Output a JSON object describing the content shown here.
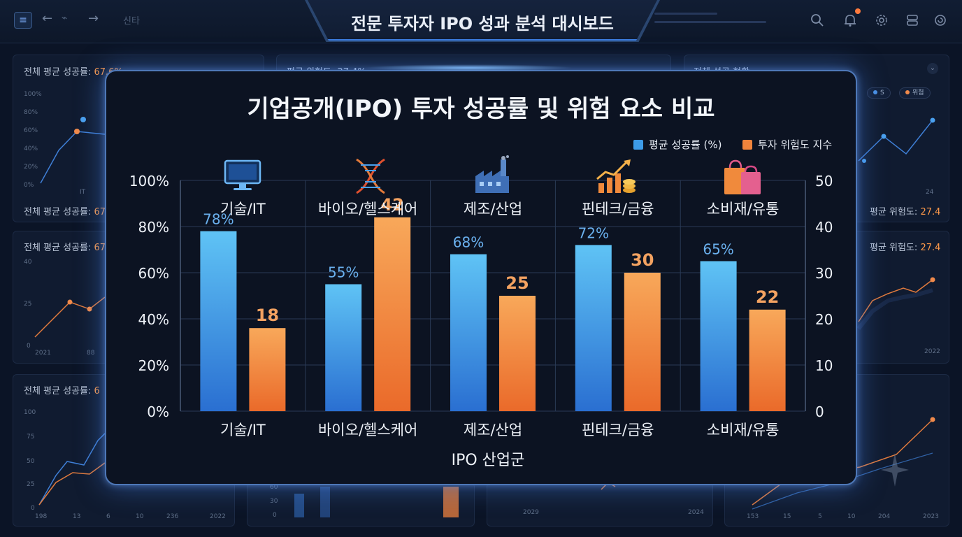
{
  "header": {
    "title": "전문 투자자 IPO 성과 분석 대시보드",
    "search_hint": "신타",
    "icons": [
      "menu-icon",
      "back-arrow-icon",
      "pulse-icon",
      "forward-arrow-icon",
      "search-icon",
      "bell-icon",
      "gear-icon",
      "layers-icon",
      "power-icon"
    ]
  },
  "background": {
    "card1_label": "전체 평균 성공률:",
    "card1_value": "67.6%",
    "card2_label": "평균 위험도:",
    "card2_value": "27.4%",
    "card3_label": "전체 성공 현황",
    "card4_label": "전체 평균 성공률:",
    "card4_value": "67.6",
    "card5_label": "평균 위험도:",
    "card5_value": "27.4",
    "card6_label": "전체 평균 성공률:",
    "card6_value": "67.",
    "card7_label": "평균 위험도:",
    "card7_value": "27.4",
    "card8_label": "전체 평균 성공률:",
    "card8_value": "6",
    "pill1": "S",
    "pill2": "위험",
    "ticks_pct": [
      "100%",
      "80%",
      "60%",
      "40%",
      "20%",
      "0%"
    ],
    "tick_it": "IT",
    "ticks_c2": [
      "40",
      "25",
      "0"
    ],
    "ticks_c2_x": [
      "2021",
      "88"
    ],
    "ticks_c3": [
      "100",
      "75",
      "50",
      "25",
      "0"
    ],
    "ticks_c3_x": [
      "198",
      "13",
      "6",
      "10",
      "236",
      "2022"
    ],
    "tick_right_year": "2022",
    "tick_right_x": "24",
    "bottom_ticks_mid": [
      "60",
      "30",
      "0"
    ],
    "bottom_years": [
      "2029",
      "2024"
    ],
    "bottom_right_ticks": [
      "153",
      "15",
      "5",
      "10",
      "204",
      "2023"
    ]
  },
  "chart_data": {
    "type": "bar",
    "title": "기업공개(IPO) 투자 성공률 및 위험 요소 비교",
    "xlabel": "IPO 산업군",
    "ylabel_left": "",
    "ylabel_right": "",
    "categories": [
      "기술/IT",
      "바이오/헬스케어",
      "제조/산업",
      "핀테크/금융",
      "소비재/유통"
    ],
    "top_labels": [
      "기술/IT",
      "바이오/헬스케어",
      "제조/산업",
      "핀테크/금융",
      "소비재/유통"
    ],
    "category_icons": [
      "monitor-icon",
      "dna-icon",
      "factory-icon",
      "growth-chart-icon",
      "shopping-bags-icon"
    ],
    "series": [
      {
        "name": "평균 성공률 (%)",
        "axis": "left",
        "values": [
          78,
          55,
          68,
          72,
          65
        ],
        "labels": [
          "78%",
          "55%",
          "68%",
          "72%",
          "65%"
        ],
        "color": "#5ab4f0",
        "label_color": "#6ab0ee"
      },
      {
        "name": "투자 위험도 지수",
        "axis": "right",
        "values": [
          18,
          42,
          25,
          30,
          22
        ],
        "labels": [
          "18",
          "42",
          "25",
          "30",
          "22"
        ],
        "color": "#f58a3c",
        "label_color": "#f3a261"
      }
    ],
    "ylim_left": [
      0,
      100
    ],
    "ylim_right": [
      0,
      50
    ],
    "yticks_left": [
      "0%",
      "20%",
      "40%",
      "60%",
      "80%",
      "100%"
    ],
    "yticks_right": [
      "0",
      "10",
      "20",
      "30",
      "40",
      "50"
    ],
    "grid": true,
    "legend_position": "top-right"
  }
}
